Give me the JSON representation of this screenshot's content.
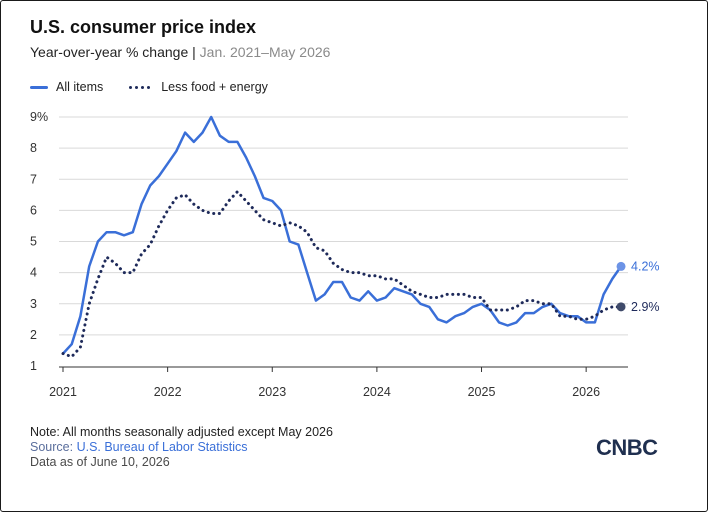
{
  "header": {
    "title": "U.S. consumer price index",
    "subtitle_main": "Year-over-year % change",
    "subtitle_sep": "|",
    "subtitle_range": "Jan. 2021–May 2026"
  },
  "legend": {
    "all_items": "All items",
    "core": "Less food + energy"
  },
  "footer": {
    "note": "Note: All months seasonally adjusted except May 2026",
    "source_label": "Source: ",
    "source_link": "U.S. Bureau of Labor Statistics",
    "as_of": "Data as of June 10, 2026"
  },
  "brand": {
    "logo_text": "CNBC"
  },
  "colors": {
    "all_items": "#3a6fd8",
    "core": "#1e2a5a",
    "grid": "#d9d9d9"
  },
  "chart_data": {
    "type": "line",
    "title": "U.S. consumer price index",
    "xlabel": "",
    "ylabel": "",
    "x_start": "2021-01",
    "x_end": "2026-05",
    "xlim": [
      2021.0,
      2026.4
    ],
    "ylim": [
      1,
      9
    ],
    "y_ticks": [
      "1",
      "2",
      "3",
      "4",
      "5",
      "6",
      "7",
      "8",
      "9%"
    ],
    "x_ticks": [
      "2021",
      "2022",
      "2023",
      "2024",
      "2025",
      "2026"
    ],
    "grid": true,
    "legend_position": "top-left",
    "series": [
      {
        "name": "All items",
        "style": "solid",
        "end_label": "4.2%",
        "values": [
          1.4,
          1.7,
          2.6,
          4.2,
          5.0,
          5.3,
          5.3,
          5.2,
          5.3,
          6.2,
          6.8,
          7.1,
          7.5,
          7.9,
          8.5,
          8.2,
          8.5,
          9.0,
          8.4,
          8.2,
          8.2,
          7.7,
          7.1,
          6.4,
          6.3,
          6.0,
          5.0,
          4.9,
          4.0,
          3.1,
          3.3,
          3.7,
          3.7,
          3.2,
          3.1,
          3.4,
          3.1,
          3.2,
          3.5,
          3.4,
          3.3,
          3.0,
          2.9,
          2.5,
          2.4,
          2.6,
          2.7,
          2.9,
          3.0,
          2.8,
          2.4,
          2.3,
          2.4,
          2.7,
          2.7,
          2.9,
          3.0,
          2.7,
          2.6,
          2.6,
          2.4,
          2.4,
          3.3,
          3.8,
          4.2
        ]
      },
      {
        "name": "Less food + energy",
        "style": "dotted",
        "end_label": "2.9%",
        "values": [
          1.4,
          1.3,
          1.6,
          3.0,
          3.8,
          4.5,
          4.3,
          4.0,
          4.0,
          4.6,
          4.9,
          5.5,
          6.0,
          6.4,
          6.5,
          6.2,
          6.0,
          5.9,
          5.9,
          6.3,
          6.6,
          6.3,
          6.0,
          5.7,
          5.6,
          5.5,
          5.6,
          5.5,
          5.3,
          4.8,
          4.7,
          4.3,
          4.1,
          4.0,
          4.0,
          3.9,
          3.9,
          3.8,
          3.8,
          3.6,
          3.4,
          3.3,
          3.2,
          3.2,
          3.3,
          3.3,
          3.3,
          3.2,
          3.2,
          2.8,
          2.8,
          2.8,
          2.9,
          3.1,
          3.1,
          3.0,
          3.0,
          2.6,
          2.6,
          2.5,
          2.5,
          2.6,
          2.8,
          2.9,
          2.9
        ]
      }
    ]
  }
}
